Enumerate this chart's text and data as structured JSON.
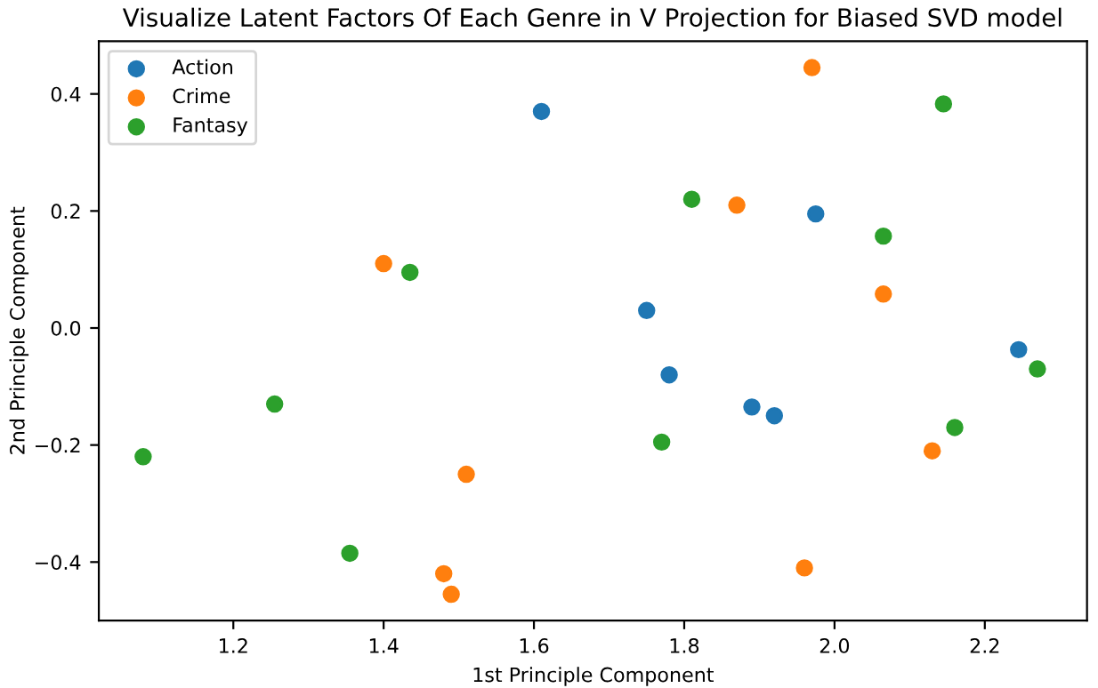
{
  "chart_data": {
    "type": "scatter",
    "title": "Visualize Latent Factors Of Each Genre in V Projection for Biased SVD model",
    "xlabel": "1st Principle Component",
    "ylabel": "2nd Principle Component",
    "series": [
      {
        "name": "Action",
        "color": "#1f77b4",
        "x": [
          1.61,
          1.75,
          1.78,
          1.89,
          1.92,
          1.975,
          2.245
        ],
        "values": [
          0.37,
          0.03,
          -0.08,
          -0.135,
          -0.15,
          0.195,
          -0.037
        ]
      },
      {
        "name": "Crime",
        "color": "#ff7f0e",
        "x": [
          1.4,
          1.51,
          1.48,
          1.49,
          1.87,
          1.97,
          1.96,
          2.065,
          2.13
        ],
        "values": [
          0.11,
          -0.25,
          -0.42,
          -0.455,
          0.21,
          0.445,
          -0.41,
          0.058,
          -0.21
        ]
      },
      {
        "name": "Fantasy",
        "color": "#2ca02c",
        "x": [
          1.08,
          1.255,
          1.355,
          1.435,
          1.77,
          1.81,
          2.065,
          2.145,
          2.16,
          2.27
        ],
        "values": [
          -0.22,
          -0.13,
          -0.385,
          0.095,
          -0.195,
          0.22,
          0.157,
          0.383,
          -0.17,
          -0.07
        ]
      }
    ],
    "xlim": [
      1.021,
      2.336
    ],
    "ylim": [
      -0.5,
      0.49
    ],
    "xticks": [
      {
        "value": 1.2,
        "label": "1.2"
      },
      {
        "value": 1.4,
        "label": "1.4"
      },
      {
        "value": 1.6,
        "label": "1.6"
      },
      {
        "value": 1.8,
        "label": "1.8"
      },
      {
        "value": 2.0,
        "label": "2.0"
      },
      {
        "value": 2.2,
        "label": "2.2"
      }
    ],
    "yticks": [
      {
        "value": -0.4,
        "label": "−0.4"
      },
      {
        "value": -0.2,
        "label": "−0.2"
      },
      {
        "value": 0.0,
        "label": "0.0"
      },
      {
        "value": 0.2,
        "label": "0.2"
      },
      {
        "value": 0.4,
        "label": "0.4"
      }
    ],
    "legend": "top left",
    "marker": "circle",
    "grid": false
  }
}
